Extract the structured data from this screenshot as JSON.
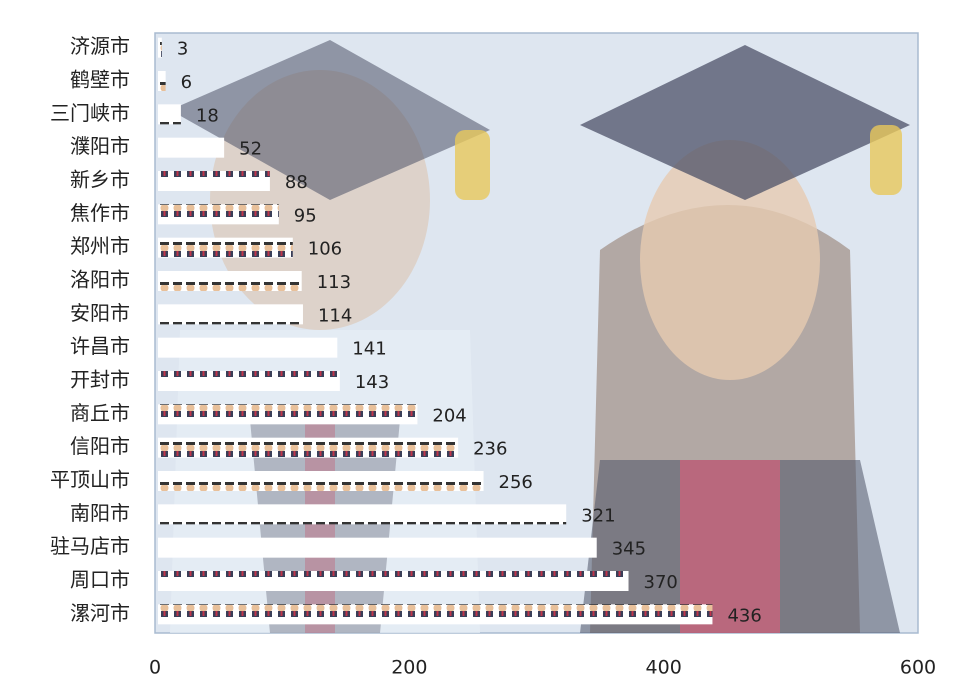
{
  "chart_data": {
    "type": "bar",
    "orientation": "horizontal",
    "categories": [
      "济源市",
      "鹤壁市",
      "三门峡市",
      "濮阳市",
      "新乡市",
      "焦作市",
      "郑州市",
      "洛阳市",
      "安阳市",
      "许昌市",
      "开封市",
      "商丘市",
      "信阳市",
      "平顶山市",
      "南阳市",
      "驻马店市",
      "周口市",
      "漯河市"
    ],
    "values": [
      3,
      6,
      18,
      52,
      88,
      95,
      106,
      113,
      114,
      141,
      143,
      204,
      236,
      256,
      321,
      345,
      370,
      436
    ],
    "xlim": [
      0,
      600
    ],
    "xticks": [
      0,
      200,
      400,
      600
    ]
  }
}
